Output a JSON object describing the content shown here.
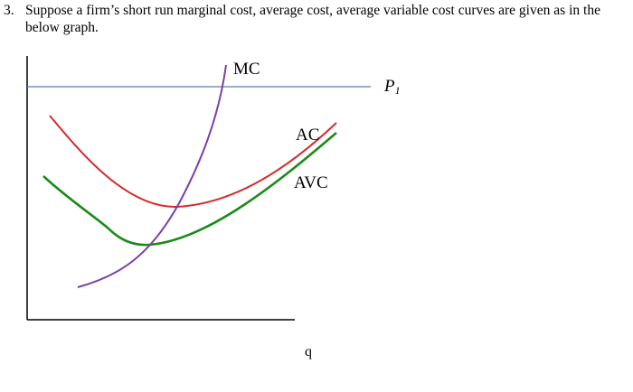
{
  "question": {
    "number": "3.",
    "text": "Suppose a firm’s short run marginal cost, average cost, average variable cost curves are given as in the below graph."
  },
  "graph": {
    "labels": {
      "mc": "MC",
      "ac": "AC",
      "avc": "AVC",
      "price": "P",
      "price_subscript": "1",
      "x_axis": "q"
    },
    "colors": {
      "axes": "#000000",
      "price_line": "#5a7db0",
      "mc": "#7b3fa8",
      "ac": "#d62a2a",
      "avc": "#1b8a1b"
    }
  }
}
